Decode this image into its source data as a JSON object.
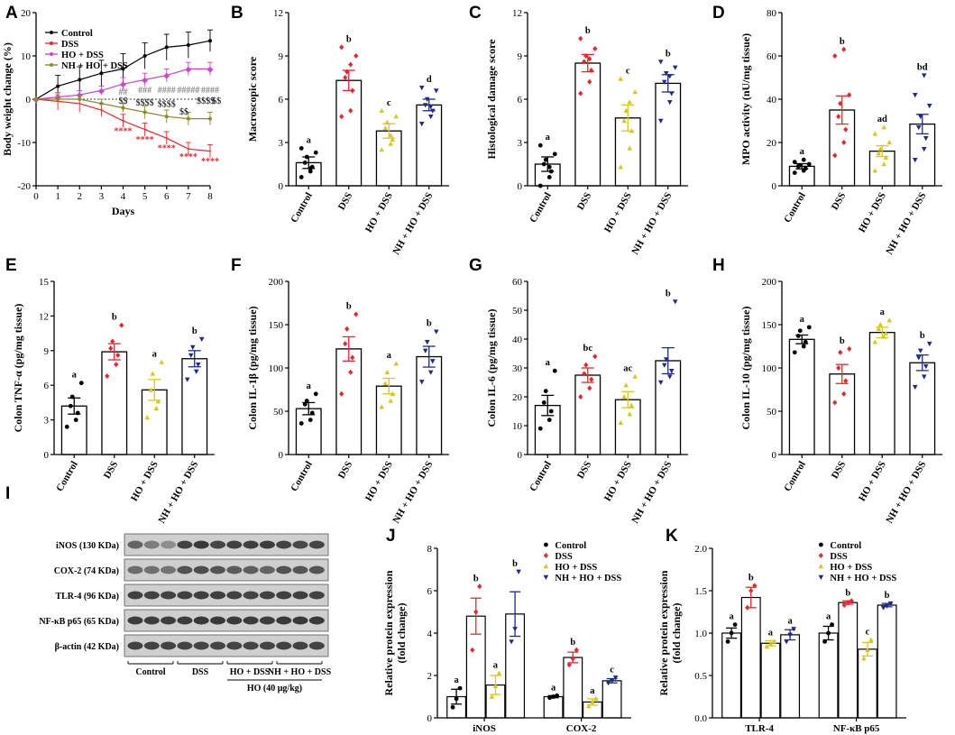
{
  "colors": {
    "Control": "#000000",
    "DSS": "#e8262b",
    "HO + DSS": "#d6c81e",
    "NH + HO + DSS": "#1e2a8c",
    "A_HO": "#cc44cc",
    "A_NH": "#8a8a2a"
  },
  "chart_data": [
    {
      "panel": "A",
      "type": "line",
      "xlabel": "Days",
      "ylabel": "Body weight change (%)",
      "ylim": [
        -20,
        20
      ],
      "yticks": [
        -20,
        -10,
        0,
        10,
        20
      ],
      "xlim": [
        0,
        8
      ],
      "xticks": [
        0,
        1,
        2,
        3,
        4,
        5,
        6,
        7,
        8
      ],
      "legend_position": "top-left",
      "series": [
        {
          "name": "Control",
          "x": [
            0,
            1,
            2,
            3,
            4,
            5,
            6,
            7,
            8
          ],
          "y": [
            0,
            3,
            4.5,
            6,
            7,
            10,
            12,
            12.5,
            13.5
          ],
          "err": [
            0,
            2.5,
            3,
            3,
            3.5,
            3,
            3,
            3,
            2.5
          ]
        },
        {
          "name": "DSS",
          "x": [
            0,
            1,
            2,
            3,
            4,
            5,
            6,
            7,
            8
          ],
          "y": [
            0,
            -0.5,
            -1,
            -2.5,
            -5,
            -7,
            -9,
            -11.5,
            -12
          ],
          "err": [
            0,
            2,
            2,
            1.5,
            1.5,
            1.5,
            1.5,
            1.5,
            1.5
          ]
        },
        {
          "name": "HO + DSS",
          "x": [
            0,
            1,
            2,
            3,
            4,
            5,
            6,
            7,
            8
          ],
          "y": [
            0,
            0.5,
            1,
            2,
            3.5,
            4.5,
            5.5,
            7,
            7
          ],
          "err": [
            0,
            1,
            1,
            1,
            1.5,
            1.5,
            1.5,
            1.5,
            1.5
          ]
        },
        {
          "name": "NH + HO + DSS",
          "x": [
            0,
            1,
            2,
            3,
            4,
            5,
            6,
            7,
            8
          ],
          "y": [
            0,
            0,
            0,
            -1,
            -2,
            -3,
            -4,
            -4.5,
            -4.5
          ],
          "err": [
            0,
            1,
            1,
            1,
            1,
            1.5,
            1.5,
            1.5,
            1.5
          ]
        }
      ],
      "annotations": [
        {
          "x": 4,
          "text": "****",
          "y": -8
        },
        {
          "x": 5,
          "text": "****",
          "y": -10
        },
        {
          "x": 6,
          "text": "****",
          "y": -12
        },
        {
          "x": 7,
          "text": "****",
          "y": -14
        },
        {
          "x": 8,
          "text": "****",
          "y": -15
        },
        {
          "x": 4,
          "text": "##",
          "y": 1
        },
        {
          "x": 5,
          "text": "###",
          "y": 1.5
        },
        {
          "x": 6,
          "text": "####",
          "y": 1.5
        },
        {
          "x": 7,
          "text": "#####",
          "y": 1.5
        },
        {
          "x": 8,
          "text": "####",
          "y": 1.5
        },
        {
          "x": 4,
          "text": "$$",
          "y": -1
        },
        {
          "x": 5,
          "text": "$$$$",
          "y": -1.5
        },
        {
          "x": 6,
          "text": "$$$$",
          "y": -1.8
        },
        {
          "x": 6.8,
          "text": "$$",
          "y": -3.5
        },
        {
          "x": 7.8,
          "text": "$$$$",
          "y": -1
        },
        {
          "x": 8.5,
          "text": "$$",
          "y": -1
        }
      ]
    },
    {
      "panel": "B",
      "type": "bar",
      "ylabel": "Macroscopic score",
      "ylim": [
        0,
        12
      ],
      "yticks": [
        0,
        3,
        6,
        9,
        12
      ],
      "categories": [
        "Control",
        "DSS",
        "HO + DSS",
        "NH + HO + DSS"
      ],
      "values": [
        1.6,
        7.3,
        3.8,
        5.6
      ],
      "errors": [
        0.4,
        0.7,
        0.5,
        0.4
      ],
      "letters": [
        "a",
        "b",
        "c",
        "d"
      ],
      "points": [
        [
          0.6,
          1.0,
          1.3,
          1.6,
          2.0,
          2.3,
          2.6,
          1.2
        ],
        [
          4.8,
          5.2,
          6.6,
          7.5,
          7.9,
          9.0,
          9.6,
          8.4
        ],
        [
          2.5,
          2.9,
          3.2,
          4.0,
          4.4,
          4.8,
          5.2,
          3.5
        ],
        [
          4.3,
          4.8,
          5.2,
          5.6,
          6.0,
          6.6,
          6.8,
          5.5
        ]
      ]
    },
    {
      "panel": "C",
      "type": "bar",
      "ylabel": "Histological damage score",
      "ylim": [
        0,
        12
      ],
      "yticks": [
        0,
        3,
        6,
        9,
        12
      ],
      "categories": [
        "Control",
        "DSS",
        "HO + DSS",
        "NH + HO + DSS"
      ],
      "values": [
        1.5,
        8.5,
        4.7,
        7.1
      ],
      "errors": [
        0.5,
        0.6,
        0.9,
        0.6
      ],
      "letters": [
        "a",
        "b",
        "c",
        "b"
      ],
      "points": [
        [
          0.0,
          0.6,
          1.0,
          1.5,
          1.8,
          2.2,
          2.8,
          1.3
        ],
        [
          6.4,
          7.2,
          8.0,
          8.6,
          9.0,
          9.5,
          10.2,
          8.8
        ],
        [
          1.3,
          2.6,
          3.8,
          4.5,
          5.2,
          6.5,
          7.4,
          5.8
        ],
        [
          4.5,
          5.8,
          6.4,
          7.2,
          7.8,
          8.2,
          8.6,
          7.6
        ]
      ]
    },
    {
      "panel": "D",
      "type": "bar",
      "ylabel": "MPO activity (nU/mg tissue)",
      "ylim": [
        0,
        80
      ],
      "yticks": [
        0,
        20,
        40,
        60,
        80
      ],
      "categories": [
        "Control",
        "DSS",
        "HO + DSS",
        "NH + HO + DSS"
      ],
      "values": [
        9,
        35,
        16,
        28.5
      ],
      "errors": [
        1.2,
        6.5,
        2.5,
        4.5
      ],
      "letters": [
        "a",
        "b",
        "ad",
        "bd"
      ],
      "points": [
        [
          6,
          7,
          8,
          9,
          9.5,
          10,
          11,
          12
        ],
        [
          14,
          20,
          26,
          32,
          38,
          42,
          60,
          63
        ],
        [
          7,
          10,
          13,
          15,
          17,
          20,
          24,
          27
        ],
        [
          12,
          17,
          22,
          27,
          32,
          37,
          42,
          51
        ]
      ]
    },
    {
      "panel": "E",
      "type": "bar",
      "ylabel": "Colon TNF-α (pg/mg tissue)",
      "ylim": [
        0,
        15
      ],
      "yticks": [
        0,
        3,
        6,
        9,
        12,
        15
      ],
      "categories": [
        "Control",
        "DSS",
        "HO + DSS",
        "NH + HO + DSS"
      ],
      "values": [
        4.2,
        8.9,
        5.6,
        8.3
      ],
      "errors": [
        0.7,
        0.7,
        0.9,
        0.7
      ],
      "letters": [
        "a",
        "b",
        "a",
        "b"
      ],
      "points": [
        [
          2.4,
          3.0,
          3.6,
          4.2,
          5.0,
          6.2
        ],
        [
          6.8,
          7.8,
          8.6,
          9.2,
          9.8,
          11.2
        ],
        [
          3.2,
          4.0,
          4.6,
          5.6,
          7.0,
          8.0
        ],
        [
          6.5,
          7.2,
          7.8,
          8.6,
          9.3,
          10.0
        ]
      ]
    },
    {
      "panel": "F",
      "type": "bar",
      "ylabel": "Colon IL-1β (pg/mg tissue)",
      "ylim": [
        0,
        200
      ],
      "yticks": [
        0,
        50,
        100,
        150,
        200
      ],
      "categories": [
        "Control",
        "DSS",
        "HO + DSS",
        "NH + HO + DSS"
      ],
      "values": [
        53,
        122,
        79,
        113
      ],
      "errors": [
        7,
        14,
        9,
        12
      ],
      "letters": [
        "a",
        "b",
        "a",
        "b"
      ],
      "points": [
        [
          36,
          40,
          48,
          58,
          62,
          70
        ],
        [
          70,
          95,
          112,
          128,
          145,
          162
        ],
        [
          55,
          62,
          70,
          82,
          95,
          105
        ],
        [
          84,
          95,
          108,
          120,
          130,
          142
        ]
      ]
    },
    {
      "panel": "G",
      "type": "bar",
      "ylabel": "Colon IL-6 (pg/mg tissue)",
      "ylim": [
        0,
        60
      ],
      "yticks": [
        0,
        10,
        20,
        30,
        40,
        50,
        60
      ],
      "categories": [
        "Control",
        "DSS",
        "HO + DSS",
        "NH + HO + DSS"
      ],
      "values": [
        17,
        27.5,
        19,
        32.5
      ],
      "errors": [
        3.5,
        2.5,
        2.8,
        4.5
      ],
      "letters": [
        "a",
        "bc",
        "ac",
        "b"
      ],
      "points": [
        [
          9,
          12,
          15,
          18,
          22,
          29
        ],
        [
          20,
          23,
          26,
          28,
          31,
          34
        ],
        [
          11,
          14,
          17,
          20,
          24,
          27
        ],
        [
          25,
          27,
          29,
          31,
          33,
          53
        ]
      ]
    },
    {
      "panel": "H",
      "type": "bar",
      "ylabel": "Colon IL-10 (pg/mg tissue)",
      "ylim": [
        0,
        200
      ],
      "yticks": [
        0,
        50,
        100,
        150,
        200
      ],
      "categories": [
        "Control",
        "DSS",
        "HO + DSS",
        "NH + HO + DSS"
      ],
      "values": [
        133,
        93,
        141,
        106
      ],
      "errors": [
        5,
        11,
        6,
        9
      ],
      "letters": [
        "a",
        "b",
        "a",
        "b"
      ],
      "points": [
        [
          118,
          125,
          130,
          137,
          143,
          147
        ],
        [
          60,
          70,
          85,
          100,
          118,
          122
        ],
        [
          130,
          136,
          140,
          145,
          150,
          155
        ],
        [
          78,
          90,
          102,
          112,
          120,
          128
        ]
      ]
    },
    {
      "panel": "J",
      "type": "bar",
      "ylabel": "Relative protein expression (fold change)",
      "ylim": [
        0,
        8
      ],
      "yticks": [
        0,
        2,
        4,
        6,
        8
      ],
      "groups": [
        "iNOS",
        "COX-2"
      ],
      "series_names": [
        "Control",
        "DSS",
        "HO + DSS",
        "NH + HO + DSS"
      ],
      "legend_position": "top-right",
      "values": [
        [
          1.0,
          4.8,
          1.55,
          4.9
        ],
        [
          1.0,
          2.85,
          0.75,
          1.75
        ]
      ],
      "errors": [
        [
          0.35,
          0.85,
          0.45,
          1.05
        ],
        [
          0.05,
          0.25,
          0.15,
          0.1
        ]
      ],
      "letters": [
        [
          "a",
          "b",
          "a",
          "b"
        ],
        [
          "a",
          "b",
          "a",
          "c"
        ]
      ],
      "points": [
        [
          [
            0.5,
            0.9,
            1.4
          ],
          [
            3.2,
            5.0,
            6.2
          ],
          [
            1.0,
            1.5,
            2.1
          ],
          [
            3.6,
            4.2,
            6.9
          ]
        ],
        [
          [
            0.95,
            1.0,
            1.05
          ],
          [
            2.5,
            2.8,
            3.2
          ],
          [
            0.55,
            0.75,
            0.9
          ],
          [
            1.65,
            1.75,
            1.9
          ]
        ]
      ]
    },
    {
      "panel": "K",
      "type": "bar",
      "ylabel": "Relative protein expression (fold change)",
      "ylim": [
        0,
        2.0
      ],
      "yticks": [
        0.0,
        0.5,
        1.0,
        1.5,
        2.0
      ],
      "groups": [
        "TLR-4",
        "NF-κB p65"
      ],
      "series_names": [
        "Control",
        "DSS",
        "HO + DSS",
        "NH + HO + DSS"
      ],
      "legend_position": "top-right",
      "values": [
        [
          1.0,
          1.42,
          0.88,
          0.98
        ],
        [
          1.0,
          1.36,
          0.81,
          1.33
        ]
      ],
      "errors": [
        [
          0.06,
          0.12,
          0.03,
          0.06
        ],
        [
          0.08,
          0.02,
          0.08,
          0.02
        ]
      ],
      "letters": [
        [
          "a",
          "b",
          "a",
          "a"
        ],
        [
          "a",
          "b",
          "c",
          "b"
        ]
      ],
      "points": [
        [
          [
            0.9,
            1.0,
            1.1
          ],
          [
            1.3,
            1.5,
            1.56
          ],
          [
            0.84,
            0.87,
            0.9
          ],
          [
            0.9,
            0.98,
            1.05
          ]
        ],
        [
          [
            0.9,
            1.0,
            1.1
          ],
          [
            1.33,
            1.36,
            1.38
          ],
          [
            0.7,
            0.8,
            0.92
          ],
          [
            1.3,
            1.32,
            1.35
          ]
        ]
      ]
    }
  ],
  "legend_A": [
    "Control",
    "DSS",
    "HO + DSS",
    "NH + HO + DSS"
  ],
  "blot": {
    "letter": "I",
    "bands": [
      "iNOS (130 KDa)",
      "COX-2 (74 KDa)",
      "TLR-4 (96 KDa)",
      "NF-κB p65 (65 KDa)",
      "β-actin (42 KDa)"
    ],
    "groups": [
      "Control",
      "DSS",
      "HO + DSS",
      "NH + HO + DSS"
    ],
    "treatment": "HO (40 μg/kg)"
  }
}
